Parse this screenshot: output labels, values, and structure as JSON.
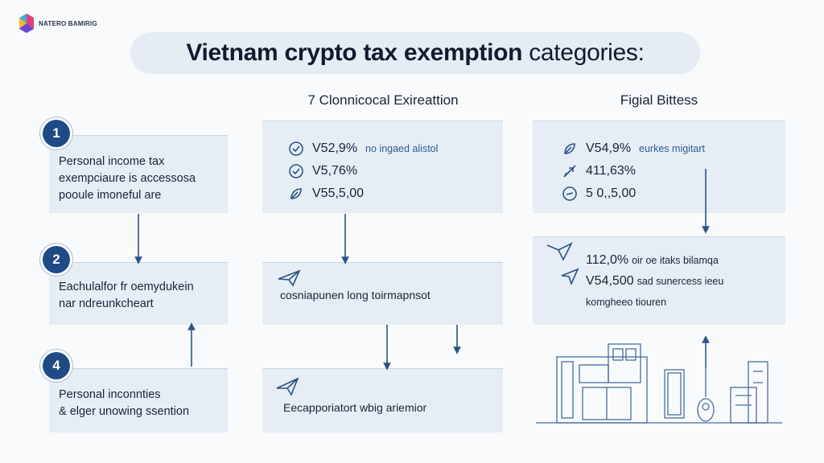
{
  "brand": {
    "name": "NATERO BAMIRIG"
  },
  "title": {
    "main": "Vietnam crypto tax exemption",
    "rest": "categories:"
  },
  "columns": {
    "middle": "7 Clonnicocal Exireattion",
    "right": "Figial Bittess"
  },
  "left_cards": [
    {
      "number": "1",
      "lines": [
        "Personal income tax",
        "exempciaure is accessosa",
        "pooule imoneful are"
      ]
    },
    {
      "number": "2",
      "lines": [
        "Eachulalfor fr oemydukein",
        "nar ndreunkcheart"
      ]
    },
    {
      "number": "4",
      "lines": [
        "Personal inconnties",
        "& elger unowing ssention"
      ]
    }
  ],
  "middle_card_1": {
    "rows": [
      {
        "value": "V52,9%",
        "note": "no ingaed alistol"
      },
      {
        "value": "V5,76%",
        "note": ""
      },
      {
        "value": "V55,5,00",
        "note": ""
      }
    ]
  },
  "middle_card_2": {
    "text": "cosniapunen long toirmapnsot"
  },
  "middle_card_3": {
    "text": "Eecapporiatort wbig ariemior"
  },
  "right_card_1": {
    "rows": [
      {
        "value": "V54,9%",
        "note": "eurkes migitart"
      },
      {
        "value": "411,63%",
        "note": ""
      },
      {
        "value": "5 0,,5,00",
        "note": ""
      }
    ]
  },
  "right_card_2": {
    "rows": [
      {
        "value": "112,0%",
        "note": "oir oe itaks bilamqa"
      },
      {
        "value": "V54,500",
        "note": "sad sunercess ieeu"
      },
      {
        "value": "",
        "note": "komgheeo tiouren"
      }
    ]
  },
  "colors": {
    "accent": "#1f4a86",
    "card": "#e6edf5",
    "note": "#2d5c94"
  },
  "icons": [
    "check-circle-icon",
    "leaf-icon",
    "plane-icon",
    "building-illustration"
  ]
}
